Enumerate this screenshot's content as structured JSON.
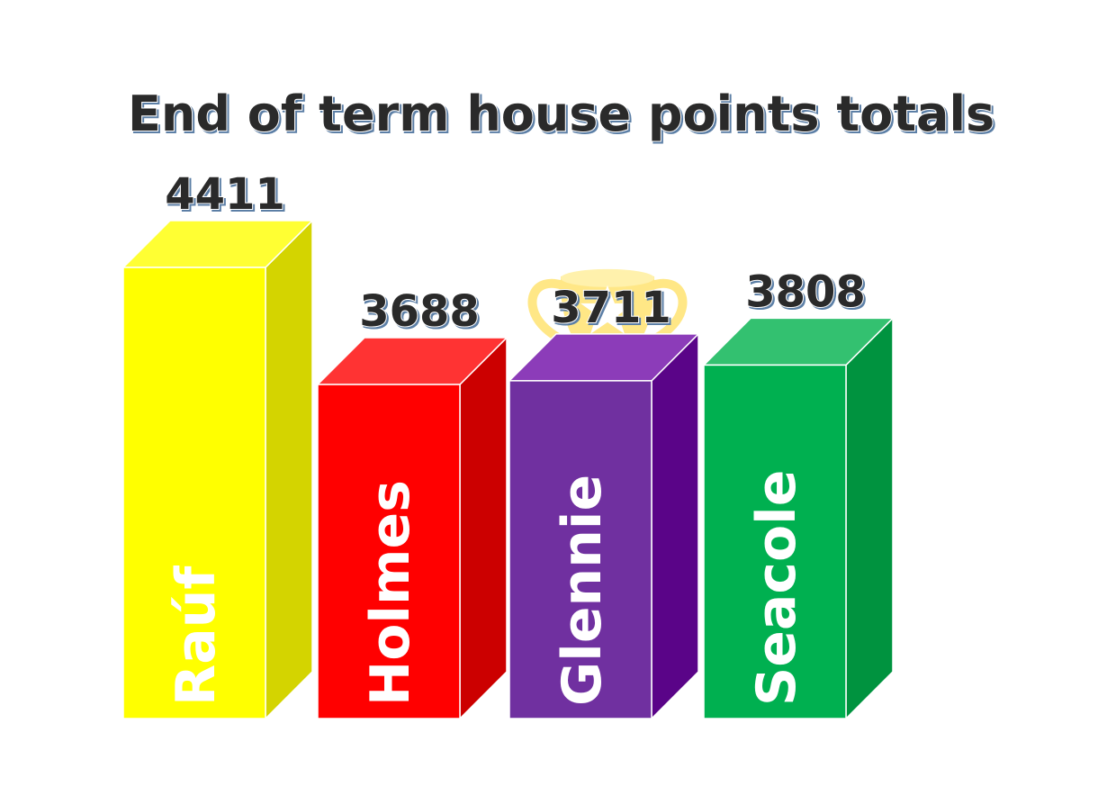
{
  "chart_data": {
    "type": "bar",
    "title": "End of term house points totals",
    "categories": [
      "Raúf",
      "Holmes",
      "Glennie",
      "Seacole"
    ],
    "values": [
      4411,
      3688,
      3711,
      3808
    ],
    "colors": {
      "front": [
        "#ffff00",
        "#ff0000",
        "#7030a0",
        "#00b050"
      ],
      "top": [
        "#ffff33",
        "#ff3333",
        "#8c3cb9",
        "#33c170"
      ],
      "side": [
        "#d4d400",
        "#cc0000",
        "#5a0488",
        "#00933f"
      ]
    },
    "trophy_on": "Glennie",
    "trophy_color": "#ffe680",
    "grid": false,
    "legend": "none"
  }
}
